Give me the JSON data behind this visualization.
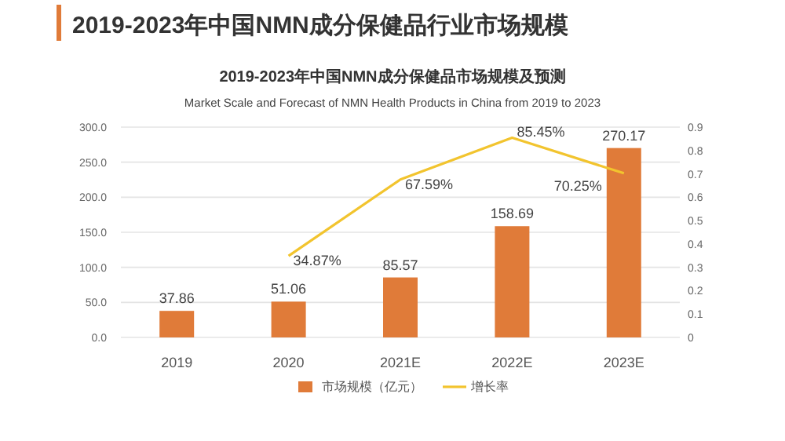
{
  "chart_data": {
    "type": "bar",
    "title": "2019-2023年中国NMN成分保健品行业市场规模",
    "subtitle": "2019-2023年中国NMN成分保健品市场规模及预测",
    "annotations": [
      "Market Scale and Forecast of NMN Health Products in China from 2019 to 2023"
    ],
    "categories": [
      "2019",
      "2020",
      "2021E",
      "2022E",
      "2023E"
    ],
    "series": [
      {
        "name": "市场规模（亿元）",
        "color": "#e07b39",
        "values": [
          37.86,
          51.06,
          85.57,
          158.69,
          270.17
        ],
        "value_labels": [
          "37.86",
          "51.06",
          "85.57",
          "158.69",
          "270.17"
        ]
      },
      {
        "name": "增长率",
        "type": "line",
        "axis": "y2",
        "color": "#f2c42e",
        "values": [
          null,
          0.3487,
          0.6759,
          0.8545,
          0.7025
        ],
        "value_labels": [
          null,
          "34.87%",
          "67.59%",
          "85.45%",
          "70.25%"
        ]
      }
    ],
    "ylim": [
      0,
      300
    ],
    "yticks": [
      {
        "value": 0,
        "label": "0.0"
      },
      {
        "value": 50,
        "label": "50.0"
      },
      {
        "value": 100,
        "label": "100.0"
      },
      {
        "value": 150,
        "label": "150.0"
      },
      {
        "value": 200,
        "label": "200.0"
      },
      {
        "value": 250,
        "label": "250.0"
      },
      {
        "value": 300,
        "label": "300.0"
      }
    ],
    "y2lim": [
      0,
      0.9
    ],
    "y2ticks": [
      0,
      0.1,
      0.2,
      0.3,
      0.4,
      0.5,
      0.6,
      0.7,
      0.8,
      0.9
    ],
    "grid": "y",
    "legend": "bottom",
    "marker": "none",
    "line_style": "solid"
  }
}
